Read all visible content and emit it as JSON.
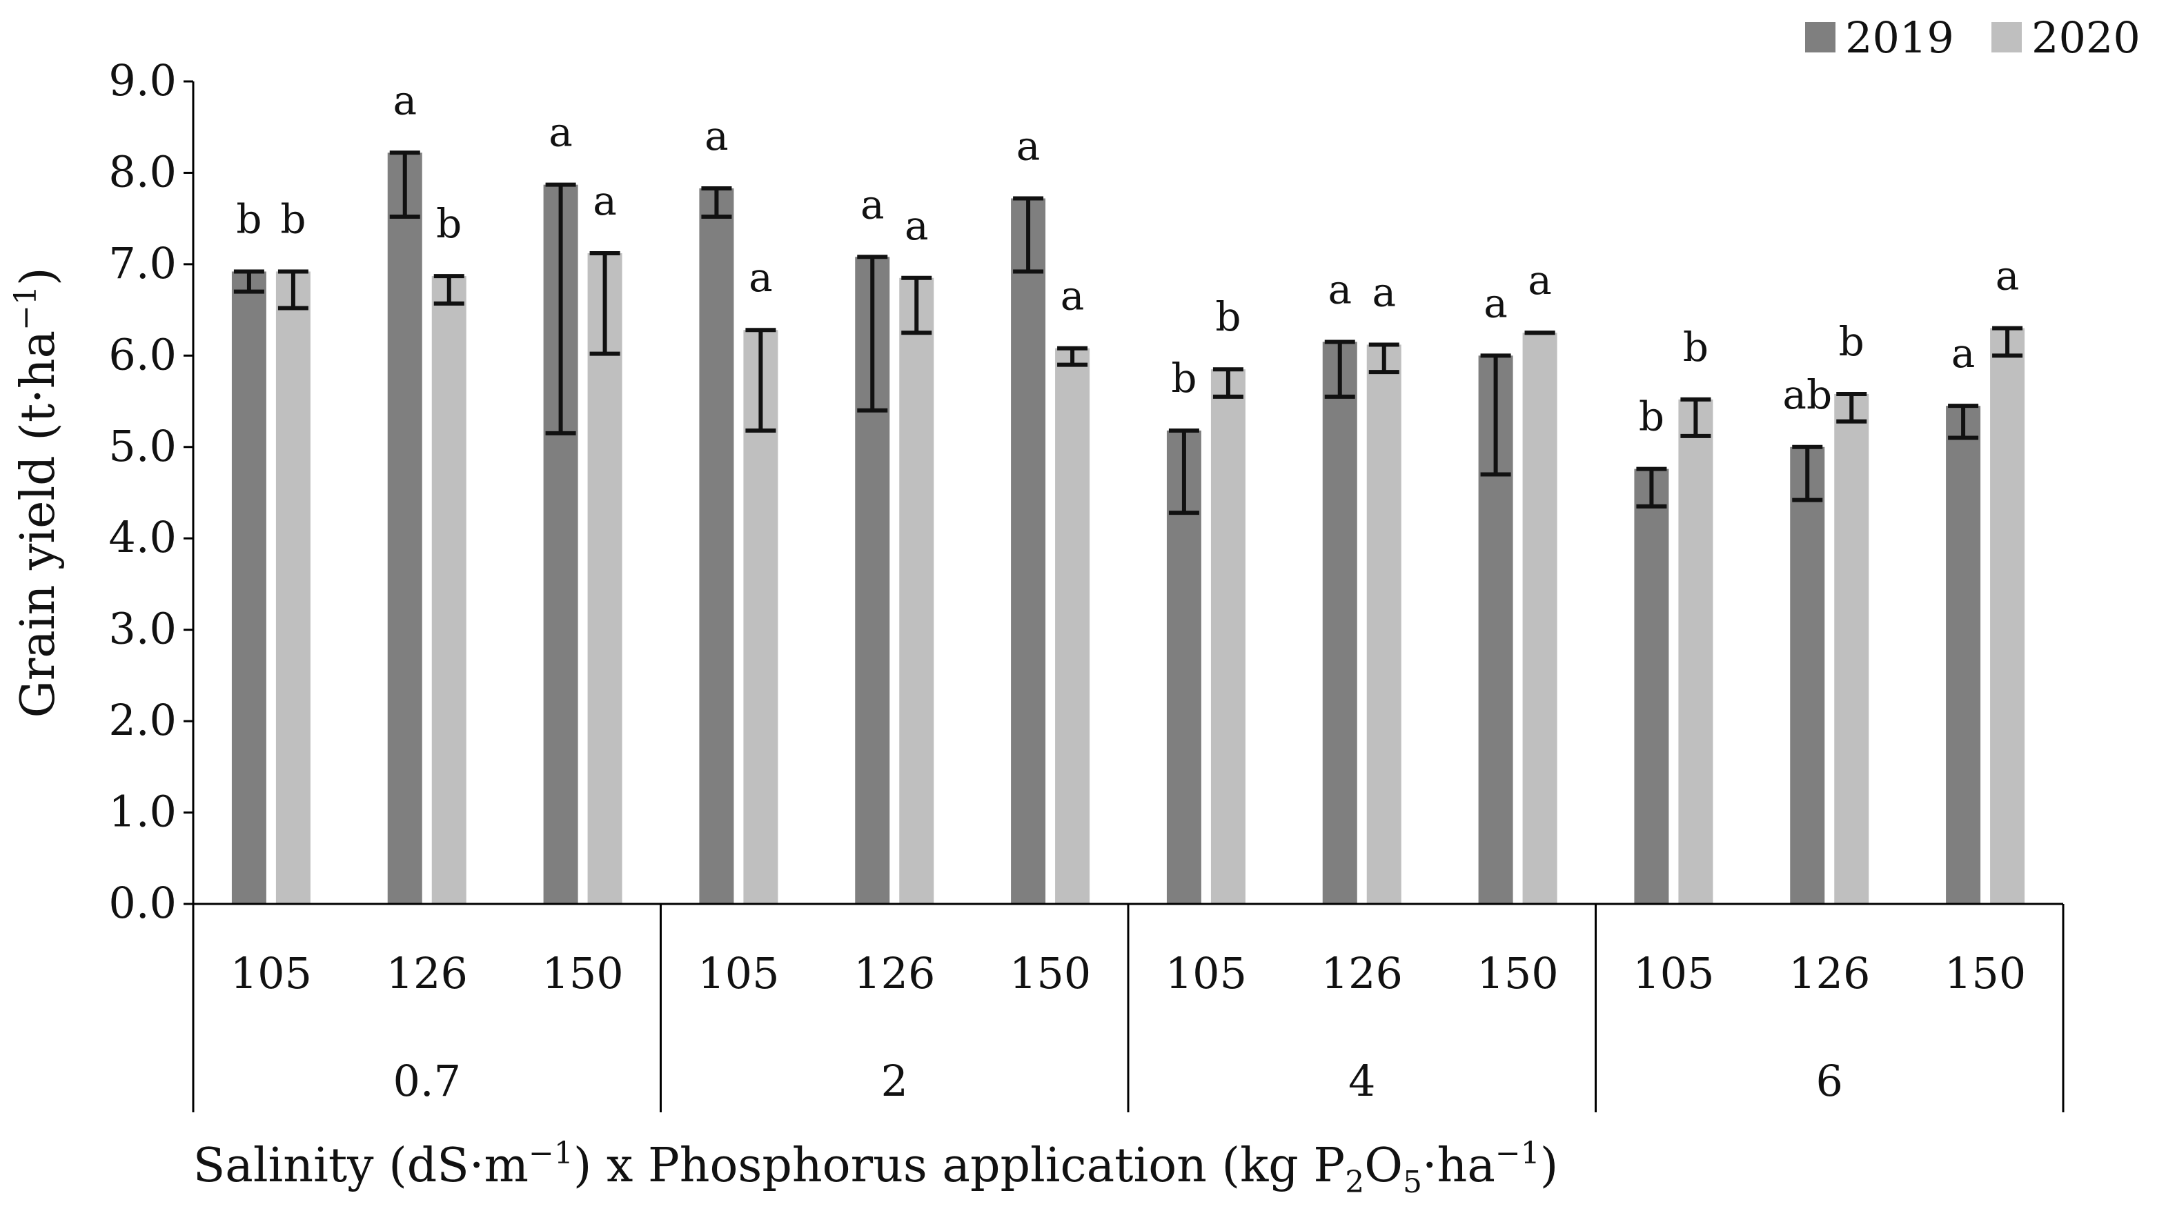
{
  "chart_data": {
    "type": "bar",
    "ylabel": "Grain yield (t·ha",
    "ylabel_sup": "−1",
    "ylabel_close": ")",
    "xlabel_parts": [
      {
        "t": "Salinity (dS·m",
        "s": "normal"
      },
      {
        "t": "−1",
        "s": "sup"
      },
      {
        "t": ") x Phosphorus application (kg P",
        "s": "normal"
      },
      {
        "t": "2",
        "s": "sub"
      },
      {
        "t": "O",
        "s": "normal"
      },
      {
        "t": "5",
        "s": "sub"
      },
      {
        "t": "·ha",
        "s": "normal"
      },
      {
        "t": "−1",
        "s": "sup"
      },
      {
        "t": ")",
        "s": "normal"
      }
    ],
    "ylim": [
      0,
      9
    ],
    "yticks": [
      "0.0",
      "1.0",
      "2.0",
      "3.0",
      "4.0",
      "5.0",
      "6.0",
      "7.0",
      "8.0",
      "9.0"
    ],
    "grid": false,
    "legend_position": "top-right",
    "groups": [
      {
        "label": "0.7",
        "categories": [
          "105",
          "126",
          "150"
        ]
      },
      {
        "label": "2",
        "categories": [
          "105",
          "126",
          "150"
        ]
      },
      {
        "label": "4",
        "categories": [
          "105",
          "126",
          "150"
        ]
      },
      {
        "label": "6",
        "categories": [
          "105",
          "126",
          "150"
        ]
      }
    ],
    "series": [
      {
        "name": "2019",
        "color": "#7f7f7f",
        "values": [
          6.92,
          8.22,
          7.87,
          7.83,
          7.08,
          7.72,
          5.18,
          6.15,
          6.0,
          4.76,
          5.0,
          5.45
        ],
        "err_low": [
          6.7,
          7.52,
          5.15,
          7.52,
          5.4,
          6.92,
          4.28,
          5.55,
          4.7,
          4.35,
          4.42,
          5.1
        ],
        "err_high": [
          6.92,
          8.22,
          7.87,
          7.83,
          7.08,
          7.72,
          5.18,
          6.15,
          6.0,
          4.76,
          5.0,
          5.45
        ],
        "labels": [
          "b",
          "a",
          "a",
          "a",
          "a",
          "a",
          "b",
          "a",
          "a",
          "b",
          "ab",
          "a"
        ]
      },
      {
        "name": "2020",
        "color": "#bfbfbf",
        "values": [
          6.92,
          6.87,
          7.12,
          6.28,
          6.85,
          6.08,
          5.85,
          6.12,
          6.25,
          5.52,
          5.58,
          6.3
        ],
        "err_low": [
          6.52,
          6.57,
          6.02,
          5.18,
          6.25,
          5.9,
          5.55,
          5.82,
          6.25,
          5.12,
          5.28,
          6.0
        ],
        "err_high": [
          6.92,
          6.87,
          7.12,
          6.28,
          6.85,
          6.08,
          5.85,
          6.12,
          6.25,
          5.52,
          5.58,
          6.3
        ],
        "labels": [
          "b",
          "b",
          "a",
          "a",
          "a",
          "a",
          "b",
          "a",
          "a",
          "b",
          "b",
          "a"
        ]
      }
    ]
  }
}
